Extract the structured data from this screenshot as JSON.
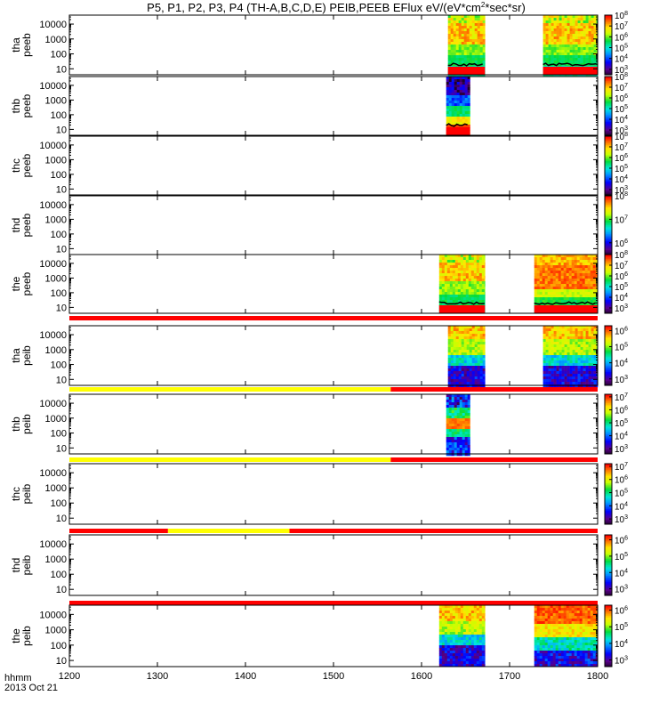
{
  "chart_data": {
    "type": "heatmap",
    "title": "P5, P1, P2, P3, P4 (TH-A,B,C,D,E) PEIB,PEEB EFlux eV/(eV*cm^2*sec*sr)",
    "title_parts": {
      "prefix": "P5, P1, P2, P3, P4 (TH-A,B,C,D,E) PEIB,PEEB EFlux eV/(eV*cm",
      "sup": "2",
      "suffix": "*sec*sr)"
    },
    "xaxis": {
      "range": [
        1200,
        1800
      ],
      "ticks": [
        "1200",
        "1300",
        "1400",
        "1500",
        "1600",
        "1700",
        "1800"
      ],
      "label_line1": "hhmm",
      "label_line2": "2013 Oct 21"
    },
    "yaxis": {
      "scale": "log",
      "range_log10": [
        0.6,
        4.6
      ],
      "ticks": [
        {
          "label": "10",
          "log": 1
        },
        {
          "label": "100",
          "log": 2
        },
        {
          "label": "1000",
          "log": 3
        },
        {
          "label": "10000",
          "log": 4
        }
      ]
    },
    "panels": [
      {
        "id": "tha_peeb",
        "ylabel1": "tha",
        "ylabel2": "peeb",
        "cmin": 2.5,
        "cmax": 8.0,
        "colorbar_labels": [
          {
            "b": "10",
            "e": "8"
          },
          {
            "b": "10",
            "e": "7"
          },
          {
            "b": "10",
            "e": "6"
          },
          {
            "b": "10",
            "e": "5"
          },
          {
            "b": "10",
            "e": "4"
          },
          {
            "b": "10",
            "e": "3"
          }
        ],
        "segments": [
          {
            "start": 1630,
            "end": 1672,
            "style": "electron",
            "bottom_red": true
          },
          {
            "start": 1738,
            "end": 1800,
            "style": "electron",
            "bottom_red": true
          }
        ],
        "flag_bar": []
      },
      {
        "id": "thb_peeb",
        "ylabel1": "thb",
        "ylabel2": "peeb",
        "cmin": 2.5,
        "cmax": 8.0,
        "colorbar_labels": [
          {
            "b": "10",
            "e": "8"
          },
          {
            "b": "10",
            "e": "7"
          },
          {
            "b": "10",
            "e": "6"
          },
          {
            "b": "10",
            "e": "5"
          },
          {
            "b": "10",
            "e": "4"
          },
          {
            "b": "10",
            "e": "3"
          }
        ],
        "segments": [
          {
            "start": 1628,
            "end": 1655,
            "style": "thb_e",
            "bottom_red": true
          }
        ],
        "flag_bar": []
      },
      {
        "id": "thc_peeb",
        "ylabel1": "thc",
        "ylabel2": "peeb",
        "cmin": 2.5,
        "cmax": 8.0,
        "colorbar_labels": [
          {
            "b": "10",
            "e": "8"
          },
          {
            "b": "10",
            "e": "7"
          },
          {
            "b": "10",
            "e": "6"
          },
          {
            "b": "10",
            "e": "5"
          },
          {
            "b": "10",
            "e": "4"
          },
          {
            "b": "10",
            "e": "3"
          }
        ],
        "segments": [],
        "flag_bar": []
      },
      {
        "id": "thd_peeb",
        "ylabel1": "thd",
        "ylabel2": "peeb",
        "cmin": 5.5,
        "cmax": 8.0,
        "colorbar_labels": [
          {
            "b": "10",
            "e": "8"
          },
          {
            "b": "10",
            "e": "7"
          },
          {
            "b": "10",
            "e": "6"
          }
        ],
        "segments": [],
        "flag_bar": []
      },
      {
        "id": "the_peeb",
        "ylabel1": "the",
        "ylabel2": "peeb",
        "cmin": 2.5,
        "cmax": 8.0,
        "colorbar_labels": [
          {
            "b": "10",
            "e": "8"
          },
          {
            "b": "10",
            "e": "7"
          },
          {
            "b": "10",
            "e": "6"
          },
          {
            "b": "10",
            "e": "5"
          },
          {
            "b": "10",
            "e": "4"
          },
          {
            "b": "10",
            "e": "3"
          }
        ],
        "segments": [
          {
            "start": 1620,
            "end": 1672,
            "style": "electron",
            "bottom_red": true
          },
          {
            "start": 1728,
            "end": 1800,
            "style": "electron_hot",
            "bottom_red": true
          }
        ],
        "flag_bar": [
          {
            "start": 1200,
            "end": 1800,
            "color": "#ff0000"
          }
        ]
      },
      {
        "id": "tha_peib",
        "ylabel1": "tha",
        "ylabel2": "peib",
        "cmin": 2.6,
        "cmax": 6.3,
        "colorbar_labels": [
          {
            "b": "10",
            "e": "6"
          },
          {
            "b": "10",
            "e": "5"
          },
          {
            "b": "10",
            "e": "4"
          },
          {
            "b": "10",
            "e": "3"
          }
        ],
        "segments": [
          {
            "start": 1630,
            "end": 1672,
            "style": "ion",
            "bottom_red": false
          },
          {
            "start": 1738,
            "end": 1800,
            "style": "ion",
            "bottom_red": false
          }
        ],
        "flag_bar": [
          {
            "start": 1200,
            "end": 1565,
            "color": "#ffff00"
          },
          {
            "start": 1565,
            "end": 1800,
            "color": "#ff0000"
          }
        ]
      },
      {
        "id": "thb_peib",
        "ylabel1": "thb",
        "ylabel2": "peib",
        "cmin": 2.6,
        "cmax": 7.2,
        "colorbar_labels": [
          {
            "b": "10",
            "e": "7"
          },
          {
            "b": "10",
            "e": "6"
          },
          {
            "b": "10",
            "e": "5"
          },
          {
            "b": "10",
            "e": "4"
          },
          {
            "b": "10",
            "e": "3"
          }
        ],
        "segments": [
          {
            "start": 1628,
            "end": 1655,
            "style": "thb_i",
            "bottom_red": false
          }
        ],
        "flag_bar": [
          {
            "start": 1200,
            "end": 1565,
            "color": "#ffff00"
          },
          {
            "start": 1565,
            "end": 1800,
            "color": "#ff0000"
          }
        ]
      },
      {
        "id": "thc_peib",
        "ylabel1": "thc",
        "ylabel2": "peib",
        "cmin": 2.6,
        "cmax": 7.2,
        "colorbar_labels": [
          {
            "b": "10",
            "e": "7"
          },
          {
            "b": "10",
            "e": "6"
          },
          {
            "b": "10",
            "e": "5"
          },
          {
            "b": "10",
            "e": "4"
          },
          {
            "b": "10",
            "e": "3"
          }
        ],
        "segments": [],
        "flag_bar": [
          {
            "start": 1200,
            "end": 1312,
            "color": "#ff0000"
          },
          {
            "start": 1312,
            "end": 1450,
            "color": "#ffff00"
          },
          {
            "start": 1450,
            "end": 1800,
            "color": "#ff0000"
          }
        ]
      },
      {
        "id": "thd_peib",
        "ylabel1": "thd",
        "ylabel2": "peib",
        "cmin": 2.6,
        "cmax": 6.3,
        "colorbar_labels": [
          {
            "b": "10",
            "e": "6"
          },
          {
            "b": "10",
            "e": "5"
          },
          {
            "b": "10",
            "e": "4"
          },
          {
            "b": "10",
            "e": "3"
          }
        ],
        "segments": [],
        "flag_bar": [
          {
            "start": 1200,
            "end": 1800,
            "color": "#ff0000"
          }
        ]
      },
      {
        "id": "the_peib",
        "ylabel1": "the",
        "ylabel2": "peib",
        "cmin": 2.6,
        "cmax": 6.3,
        "colorbar_labels": [
          {
            "b": "10",
            "e": "6"
          },
          {
            "b": "10",
            "e": "5"
          },
          {
            "b": "10",
            "e": "4"
          },
          {
            "b": "10",
            "e": "3"
          }
        ],
        "segments": [
          {
            "start": 1620,
            "end": 1672,
            "style": "ion",
            "bottom_red": false
          },
          {
            "start": 1728,
            "end": 1800,
            "style": "ion_hot",
            "bottom_red": false
          }
        ],
        "flag_bar": []
      }
    ]
  }
}
